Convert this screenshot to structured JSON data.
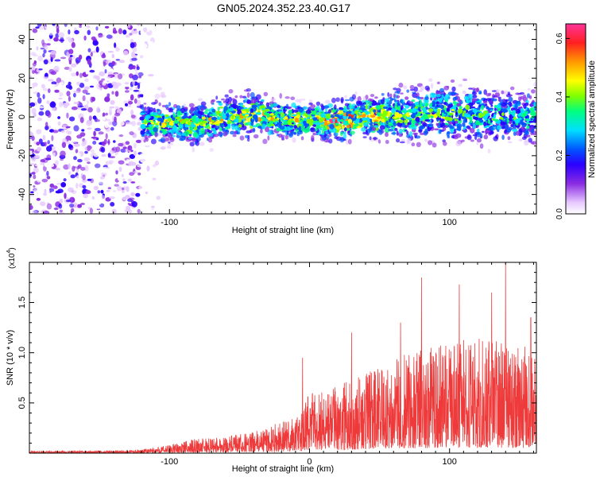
{
  "title": "GN05.2024.352.23.40.G17",
  "chart_data": [
    {
      "type": "heatmap",
      "xlabel": "Height of straight line (km)",
      "ylabel": "Frequency (Hz)",
      "xlim": [
        -200,
        162
      ],
      "ylim": [
        -50,
        48
      ],
      "x_ticks": [
        -100,
        0,
        100
      ],
      "x_tick_labels": [
        "-100",
        "",
        "100"
      ],
      "y_ticks": [
        -40,
        -20,
        0,
        20,
        40
      ],
      "y_tick_labels": [
        "-40",
        "-20",
        "0",
        "20",
        "40"
      ],
      "colorbar": {
        "label": "Normalized spectral amplitude",
        "range": [
          0,
          0.65
        ],
        "ticks": [
          0.0,
          0.2,
          0.4,
          0.6
        ],
        "tick_labels": [
          "0.0",
          "0.2",
          "0.4",
          "0.6"
        ],
        "colors": [
          "#ffffff",
          "#e6c8ff",
          "#8a2be2",
          "#2a00ff",
          "#0055ff",
          "#00e0ff",
          "#00ff7f",
          "#7fff00",
          "#ffff00",
          "#ff9900",
          "#ff2020",
          "#ff3399"
        ]
      },
      "band": [
        {
          "x": -120,
          "center": -3,
          "halfwidth": 9,
          "level": 0.3
        },
        {
          "x": -100,
          "center": -3,
          "halfwidth": 9,
          "level": 0.33
        },
        {
          "x": -80,
          "center": -4,
          "halfwidth": 10,
          "level": 0.33
        },
        {
          "x": -60,
          "center": 0,
          "halfwidth": 10,
          "level": 0.35
        },
        {
          "x": -40,
          "center": 1,
          "halfwidth": 10,
          "level": 0.36
        },
        {
          "x": -20,
          "center": -1,
          "halfwidth": 9,
          "level": 0.34
        },
        {
          "x": 0,
          "center": -2,
          "halfwidth": 8,
          "level": 0.35
        },
        {
          "x": 20,
          "center": -2,
          "halfwidth": 9,
          "level": 0.42
        },
        {
          "x": 40,
          "center": 0,
          "halfwidth": 9,
          "level": 0.38
        },
        {
          "x": 60,
          "center": 1,
          "halfwidth": 12,
          "level": 0.33
        },
        {
          "x": 80,
          "center": 1,
          "halfwidth": 13,
          "level": 0.3
        },
        {
          "x": 100,
          "center": 2,
          "halfwidth": 14,
          "level": 0.3
        },
        {
          "x": 120,
          "center": 1,
          "halfwidth": 13,
          "level": 0.28
        },
        {
          "x": 140,
          "center": 0,
          "halfwidth": 12,
          "level": 0.27
        },
        {
          "x": 160,
          "center": 0,
          "halfwidth": 12,
          "level": 0.27
        }
      ],
      "noise_region": {
        "x_range": [
          -200,
          -120
        ],
        "level": 0.15
      }
    },
    {
      "type": "line",
      "xlabel": "Height of straight line (km)",
      "ylabel": "SNR (10 * v/v)",
      "y_multiplier": "(x10",
      "y_multiplier_exp": "4",
      "xlim": [
        -200,
        162
      ],
      "ylim": [
        0,
        19000
      ],
      "x_ticks": [
        -100,
        0,
        100
      ],
      "x_tick_labels": [
        "-100",
        "0",
        "100"
      ],
      "y_ticks": [
        5000,
        10000,
        15000
      ],
      "y_tick_labels": [
        "0.5",
        "1.0",
        "1.5"
      ],
      "color": "#ee3a3a",
      "envelope": [
        {
          "x": -200,
          "y": 200
        },
        {
          "x": -140,
          "y": 250
        },
        {
          "x": -120,
          "y": 350
        },
        {
          "x": -100,
          "y": 800
        },
        {
          "x": -80,
          "y": 1400
        },
        {
          "x": -60,
          "y": 1600
        },
        {
          "x": -40,
          "y": 2000
        },
        {
          "x": -20,
          "y": 3000
        },
        {
          "x": -10,
          "y": 3600
        },
        {
          "x": -5,
          "y": 3900
        },
        {
          "x": 0,
          "y": 6000
        },
        {
          "x": 20,
          "y": 6500
        },
        {
          "x": 40,
          "y": 7500
        },
        {
          "x": 60,
          "y": 9000
        },
        {
          "x": 80,
          "y": 10000
        },
        {
          "x": 100,
          "y": 10500
        },
        {
          "x": 120,
          "y": 11000
        },
        {
          "x": 140,
          "y": 10500
        },
        {
          "x": 162,
          "y": 10000
        }
      ],
      "peaks": [
        {
          "x": -5,
          "y": 9500
        },
        {
          "x": 30,
          "y": 12000
        },
        {
          "x": 65,
          "y": 13000
        },
        {
          "x": 80,
          "y": 17500
        },
        {
          "x": 107,
          "y": 16800
        },
        {
          "x": 130,
          "y": 16000
        },
        {
          "x": 140,
          "y": 19000
        },
        {
          "x": 158,
          "y": 13500
        }
      ]
    }
  ]
}
